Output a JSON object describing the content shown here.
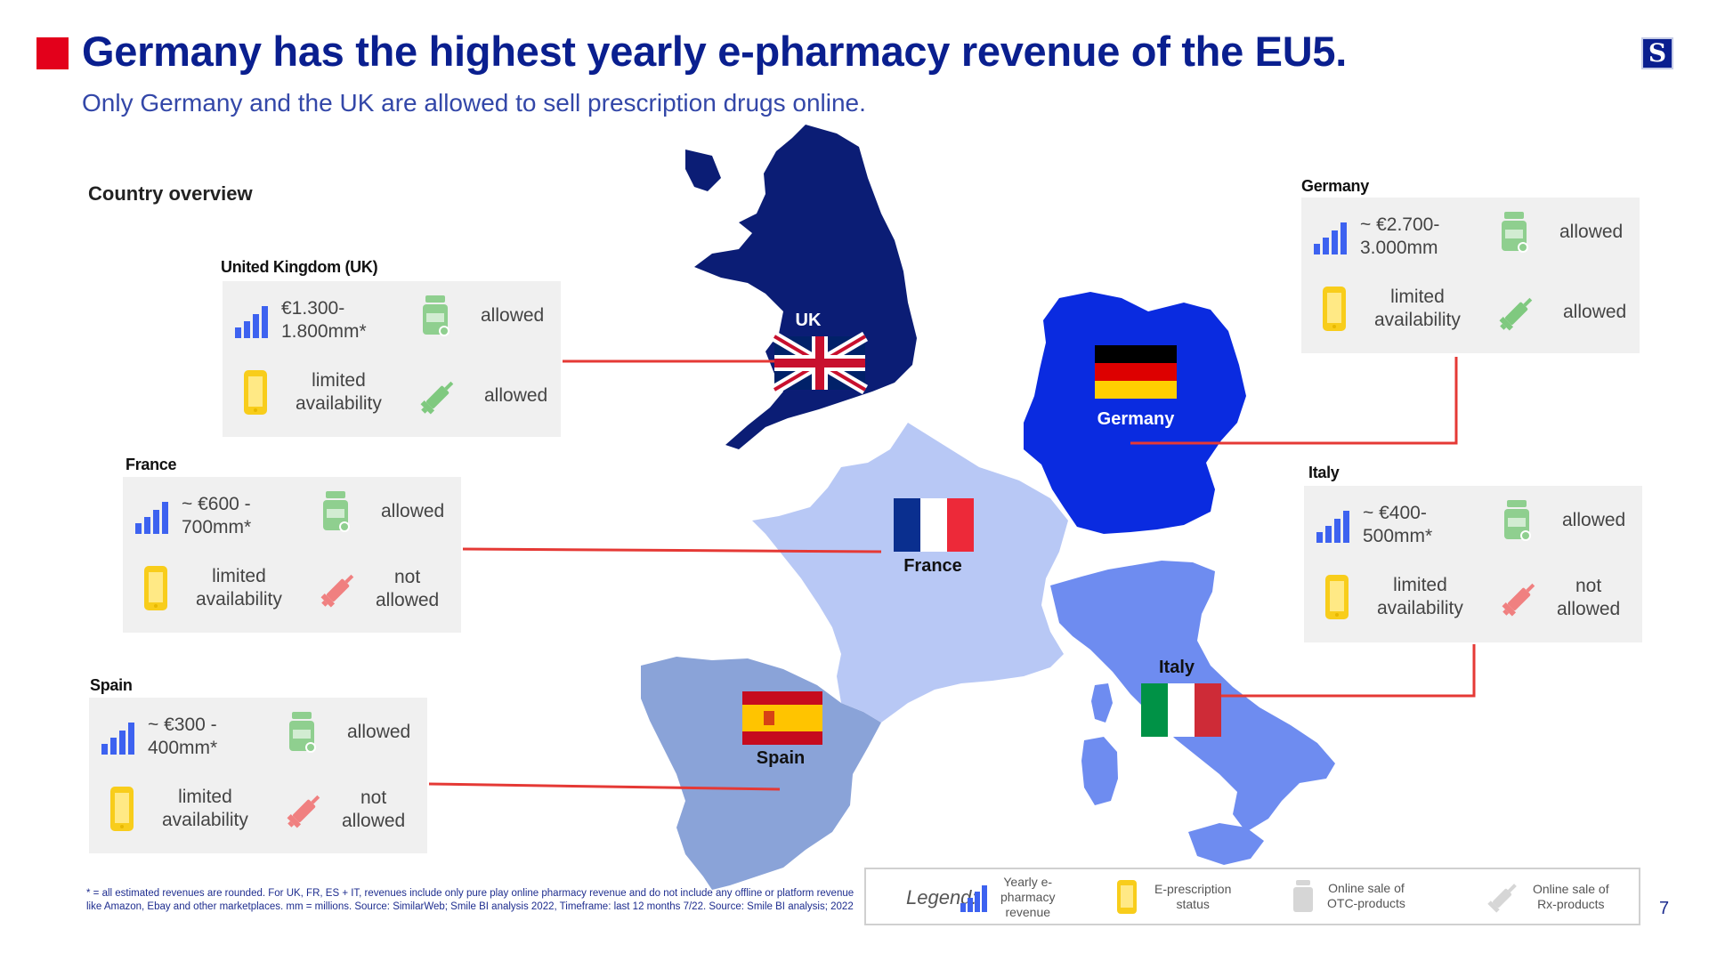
{
  "header": {
    "title": "Germany has the highest yearly e-pharmacy revenue of the EU5.",
    "subtitle": "Only Germany and the UK are allowed to sell prescription drugs online.",
    "logo_text": "S",
    "section_label": "Country overview"
  },
  "map_labels": {
    "uk": "UK",
    "germany": "Germany",
    "france": "France",
    "italy": "Italy",
    "spain": "Spain"
  },
  "countries": {
    "uk": {
      "name": "United Kingdom (UK)",
      "revenue": "€1.300-\n1.800mm*",
      "eprescription": "limited\navailability",
      "otc": "allowed",
      "rx": "allowed"
    },
    "france": {
      "name": "France",
      "revenue": "~ €600 -\n700mm*",
      "eprescription": "limited\navailability",
      "otc": "allowed",
      "rx": "not\nallowed"
    },
    "spain": {
      "name": "Spain",
      "revenue": "~ €300 -\n400mm*",
      "eprescription": "limited\navailability",
      "otc": "allowed",
      "rx": "not\nallowed"
    },
    "germany": {
      "name": "Germany",
      "revenue": "~ €2.700-\n3.000mm",
      "eprescription": "limited\navailability",
      "otc": "allowed",
      "rx": "allowed"
    },
    "italy": {
      "name": "Italy",
      "revenue": "~ €400-\n500mm*",
      "eprescription": "limited\navailability",
      "otc": "allowed",
      "rx": "not\nallowed"
    }
  },
  "legend": {
    "title": "Legend:",
    "items": [
      {
        "label": "Yearly e-\npharmacy\nrevenue",
        "icon": "signal-bars-icon"
      },
      {
        "label": "E-prescription\nstatus",
        "icon": "phone-icon"
      },
      {
        "label": "Online sale of\nOTC-products",
        "icon": "pill-bottle-icon"
      },
      {
        "label": "Online sale of\nRx-products",
        "icon": "syringe-icon"
      }
    ]
  },
  "footnote": "* = all estimated revenues are rounded. For UK, FR, ES + IT, revenues include only pure play online pharmacy revenue and do not include any offline or platform revenue like Amazon, Ebay and other marketplaces. mm = millions. Source: SimilarWeb; Smile BI analysis 2022, Timeframe: last 12 months 7/22. Source: Smile BI analysis; 2022",
  "page_number": "7",
  "colors": {
    "title": "#0a1f8f",
    "accent_red": "#e3001b",
    "uk_fill": "#0b1d75",
    "germany_fill": "#0a2be0",
    "italy_fill": "#6e8cf0",
    "spain_fill": "#8aa3d8",
    "france_fill": "#b8c8f5",
    "connector": "#e53935",
    "bars_icon": "#3d62f0",
    "phone_icon": "#f8cd1b",
    "bottle_icon": "#8fcf8f",
    "syringe_allowed": "#7fc97f",
    "syringe_not_allowed": "#f08080"
  }
}
